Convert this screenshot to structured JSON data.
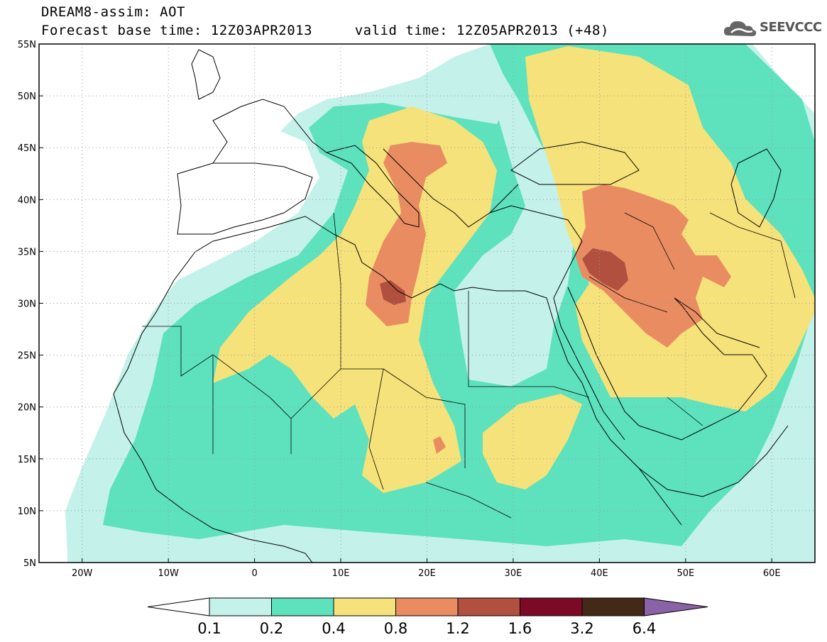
{
  "header": {
    "title_line1": "DREAM8-assim: AOT",
    "title_line2": "Forecast base time: 12Z03APR2013     valid time: 12Z05APR2013 (+48)",
    "logo_text": "SEEVCCC",
    "logo_icon": "cloud-logo-icon"
  },
  "map": {
    "projection": "lat-lon",
    "lon_range": [
      -25,
      65
    ],
    "lat_range": [
      5,
      55
    ],
    "lat_ticks": [
      {
        "value": 55,
        "label": "55N"
      },
      {
        "value": 50,
        "label": "50N"
      },
      {
        "value": 45,
        "label": "45N"
      },
      {
        "value": 40,
        "label": "40N"
      },
      {
        "value": 35,
        "label": "35N"
      },
      {
        "value": 30,
        "label": "30N"
      },
      {
        "value": 25,
        "label": "25N"
      },
      {
        "value": 20,
        "label": "20N"
      },
      {
        "value": 15,
        "label": "15N"
      },
      {
        "value": 10,
        "label": "10N"
      },
      {
        "value": 5,
        "label": "5N"
      }
    ],
    "lon_ticks": [
      {
        "value": -20,
        "label": "20W"
      },
      {
        "value": -10,
        "label": "10W"
      },
      {
        "value": 0,
        "label": "0"
      },
      {
        "value": 10,
        "label": "10E"
      },
      {
        "value": 20,
        "label": "20E"
      },
      {
        "value": 30,
        "label": "30E"
      },
      {
        "value": 40,
        "label": "40E"
      },
      {
        "value": 50,
        "label": "50E"
      },
      {
        "value": 60,
        "label": "60E"
      }
    ],
    "grid": true
  },
  "colorbar": {
    "levels": [
      "0.1",
      "0.2",
      "0.4",
      "0.8",
      "1.2",
      "1.6",
      "3.2",
      "6.4"
    ],
    "colors": [
      "#ffffff",
      "#c4f1ea",
      "#5de2bd",
      "#f6e27a",
      "#ea8c62",
      "#b1503f",
      "#7c0a27",
      "#442818",
      "#8a62a6"
    ]
  }
}
